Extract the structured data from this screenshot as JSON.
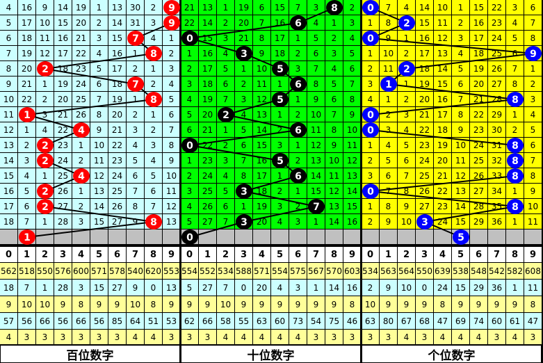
{
  "chart_data": {
    "type": "table",
    "panels": [
      {
        "label": "百位数字",
        "bg": "#ccffff",
        "ball_color": "#ff0000",
        "rows": [
          [
            4,
            16,
            9,
            14,
            19,
            1,
            13,
            30,
            2,
            9
          ],
          [
            5,
            17,
            10,
            15,
            20,
            2,
            14,
            31,
            3,
            9
          ],
          [
            6,
            18,
            11,
            16,
            21,
            3,
            15,
            7,
            4,
            1
          ],
          [
            7,
            19,
            12,
            17,
            22,
            4,
            16,
            1,
            8,
            2
          ],
          [
            8,
            20,
            2,
            18,
            23,
            5,
            17,
            2,
            1,
            3
          ],
          [
            9,
            21,
            1,
            19,
            24,
            6,
            18,
            7,
            2,
            4
          ],
          [
            10,
            22,
            2,
            20,
            25,
            7,
            19,
            1,
            8,
            5
          ],
          [
            11,
            1,
            3,
            21,
            26,
            8,
            20,
            2,
            1,
            6
          ],
          [
            12,
            1,
            4,
            22,
            4,
            9,
            21,
            3,
            2,
            7
          ],
          [
            13,
            2,
            2,
            23,
            1,
            10,
            22,
            4,
            3,
            8
          ],
          [
            14,
            3,
            2,
            24,
            2,
            11,
            23,
            5,
            4,
            9
          ],
          [
            15,
            4,
            1,
            25,
            4,
            12,
            24,
            6,
            5,
            10
          ],
          [
            16,
            5,
            2,
            26,
            1,
            13,
            25,
            7,
            6,
            11
          ],
          [
            17,
            6,
            2,
            27,
            2,
            14,
            26,
            8,
            7,
            12
          ],
          [
            18,
            7,
            1,
            28,
            3,
            15,
            27,
            9,
            8,
            13
          ]
        ],
        "hits": [
          9,
          9,
          7,
          8,
          2,
          7,
          8,
          1,
          4,
          2,
          2,
          4,
          2,
          2,
          8,
          1
        ],
        "stats": [
          [
            562,
            518,
            550,
            576,
            600,
            571,
            578,
            540,
            620,
            553
          ],
          [
            18,
            7,
            1,
            28,
            3,
            15,
            27,
            9,
            0,
            13
          ],
          [
            9,
            10,
            10,
            9,
            8,
            9,
            9,
            10,
            8,
            9
          ],
          [
            57,
            56,
            66,
            56,
            66,
            56,
            85,
            64,
            51,
            53
          ],
          [
            4,
            3,
            3,
            3,
            3,
            3,
            3,
            4,
            4,
            3
          ]
        ]
      },
      {
        "label": "十位数字",
        "bg": "#00ff00",
        "ball_color": "#000000",
        "rows": [
          [
            21,
            13,
            1,
            19,
            6,
            15,
            7,
            3,
            8,
            2
          ],
          [
            22,
            14,
            2,
            20,
            7,
            16,
            6,
            4,
            1,
            3
          ],
          [
            0,
            15,
            3,
            21,
            8,
            17,
            1,
            5,
            2,
            4
          ],
          [
            1,
            16,
            4,
            3,
            9,
            18,
            2,
            6,
            3,
            5
          ],
          [
            2,
            17,
            5,
            1,
            10,
            5,
            3,
            7,
            4,
            6
          ],
          [
            3,
            18,
            6,
            2,
            11,
            1,
            6,
            8,
            5,
            7
          ],
          [
            4,
            19,
            7,
            3,
            12,
            5,
            1,
            9,
            6,
            8
          ],
          [
            5,
            20,
            2,
            4,
            13,
            1,
            2,
            10,
            7,
            9
          ],
          [
            6,
            21,
            1,
            5,
            14,
            2,
            6,
            11,
            8,
            10
          ],
          [
            0,
            22,
            2,
            6,
            15,
            3,
            1,
            12,
            9,
            11
          ],
          [
            1,
            23,
            3,
            7,
            16,
            5,
            2,
            13,
            10,
            12
          ],
          [
            2,
            24,
            4,
            8,
            17,
            1,
            6,
            14,
            11,
            13
          ],
          [
            3,
            25,
            5,
            3,
            18,
            2,
            1,
            15,
            12,
            14
          ],
          [
            4,
            26,
            6,
            1,
            19,
            3,
            2,
            7,
            13,
            15
          ],
          [
            5,
            27,
            7,
            3,
            20,
            4,
            3,
            1,
            14,
            16
          ]
        ],
        "hits": [
          8,
          6,
          0,
          3,
          5,
          6,
          5,
          2,
          6,
          0,
          5,
          6,
          3,
          7,
          3,
          0
        ],
        "stats": [
          [
            554,
            552,
            534,
            588,
            571,
            554,
            575,
            567,
            570,
            603
          ],
          [
            5,
            27,
            7,
            0,
            20,
            4,
            3,
            1,
            14,
            16
          ],
          [
            9,
            9,
            10,
            9,
            9,
            9,
            9,
            9,
            9,
            8
          ],
          [
            62,
            66,
            58,
            55,
            63,
            60,
            73,
            54,
            75,
            46
          ],
          [
            3,
            3,
            4,
            4,
            4,
            4,
            4,
            3,
            3,
            3
          ]
        ]
      },
      {
        "label": "个位数字",
        "bg": "#ffff00",
        "ball_color": "#0000ff",
        "rows": [
          [
            0,
            7,
            4,
            14,
            10,
            1,
            15,
            22,
            3,
            6
          ],
          [
            1,
            8,
            2,
            15,
            11,
            2,
            16,
            23,
            4,
            7
          ],
          [
            0,
            9,
            1,
            16,
            12,
            3,
            17,
            24,
            5,
            8
          ],
          [
            1,
            10,
            2,
            17,
            13,
            4,
            18,
            25,
            6,
            9
          ],
          [
            2,
            11,
            2,
            18,
            14,
            5,
            19,
            26,
            7,
            1
          ],
          [
            3,
            1,
            1,
            19,
            15,
            6,
            20,
            27,
            8,
            2
          ],
          [
            4,
            1,
            2,
            20,
            16,
            7,
            21,
            28,
            8,
            3
          ],
          [
            0,
            2,
            3,
            21,
            17,
            8,
            22,
            29,
            1,
            4
          ],
          [
            0,
            3,
            4,
            22,
            18,
            9,
            23,
            30,
            2,
            5
          ],
          [
            1,
            4,
            5,
            23,
            19,
            10,
            24,
            31,
            8,
            6
          ],
          [
            2,
            5,
            6,
            24,
            20,
            11,
            25,
            32,
            8,
            7
          ],
          [
            3,
            6,
            7,
            25,
            21,
            12,
            26,
            33,
            8,
            8
          ],
          [
            0,
            7,
            8,
            26,
            22,
            13,
            27,
            34,
            1,
            9
          ],
          [
            1,
            8,
            9,
            27,
            23,
            14,
            28,
            35,
            8,
            10
          ],
          [
            2,
            9,
            10,
            3,
            24,
            15,
            29,
            36,
            1,
            11
          ]
        ],
        "hits": [
          0,
          2,
          0,
          9,
          2,
          1,
          8,
          0,
          0,
          8,
          8,
          8,
          0,
          8,
          3,
          5
        ],
        "stats": [
          [
            534,
            563,
            564,
            550,
            639,
            538,
            548,
            542,
            582,
            608
          ],
          [
            2,
            9,
            10,
            0,
            24,
            15,
            29,
            36,
            1,
            11
          ],
          [
            10,
            9,
            9,
            9,
            8,
            9,
            9,
            9,
            9,
            8
          ],
          [
            63,
            80,
            67,
            68,
            47,
            69,
            74,
            60,
            61,
            47
          ],
          [
            3,
            3,
            4,
            3,
            4,
            4,
            4,
            3,
            4,
            3
          ]
        ]
      }
    ],
    "digits": [
      "0",
      "1",
      "2",
      "3",
      "4",
      "5",
      "6",
      "7",
      "8",
      "9"
    ],
    "stat_row_colors": [
      "#ffff99",
      "#ccffff",
      "#ffff99",
      "#ccffff",
      "#ffff99"
    ],
    "blank_row_color": "#c0c0c0"
  }
}
